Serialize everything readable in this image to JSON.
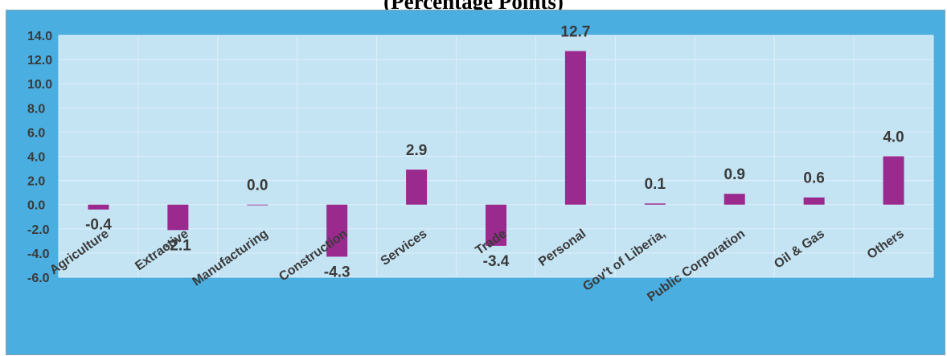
{
  "title": "(Percentage Points)",
  "colors": {
    "outer_background": "#4aaee0",
    "plot_background": "#c4e4f4",
    "bar": "#9b2a8e",
    "text": "#3a3a3a"
  },
  "chart_data": {
    "type": "bar",
    "title": "(Percentage Points)",
    "xlabel": "",
    "ylabel": "",
    "categories": [
      "Agriculture",
      "Extractive",
      "Manufacturing",
      "Construction",
      "Services",
      "Trade",
      "Personal",
      "Gov't of Liberia,",
      "Public Corporation",
      "Oil & Gas",
      "Others"
    ],
    "values": [
      -0.4,
      -2.1,
      0.0,
      -4.3,
      2.9,
      -3.4,
      12.7,
      0.1,
      0.9,
      0.6,
      4.0
    ],
    "value_labels": [
      "-0.4",
      "-2.1",
      "0.0",
      "-4.3",
      "2.9",
      "-3.4",
      "12.7",
      "0.1",
      "0.9",
      "0.6",
      "4.0"
    ],
    "ylim": [
      -6.0,
      14.0
    ],
    "yticks": [
      "-6.0",
      "-4.0",
      "-2.0",
      "0.0",
      "2.0",
      "4.0",
      "6.0",
      "8.0",
      "10.0",
      "12.0",
      "14.0"
    ],
    "grid": true,
    "legend": "none"
  }
}
